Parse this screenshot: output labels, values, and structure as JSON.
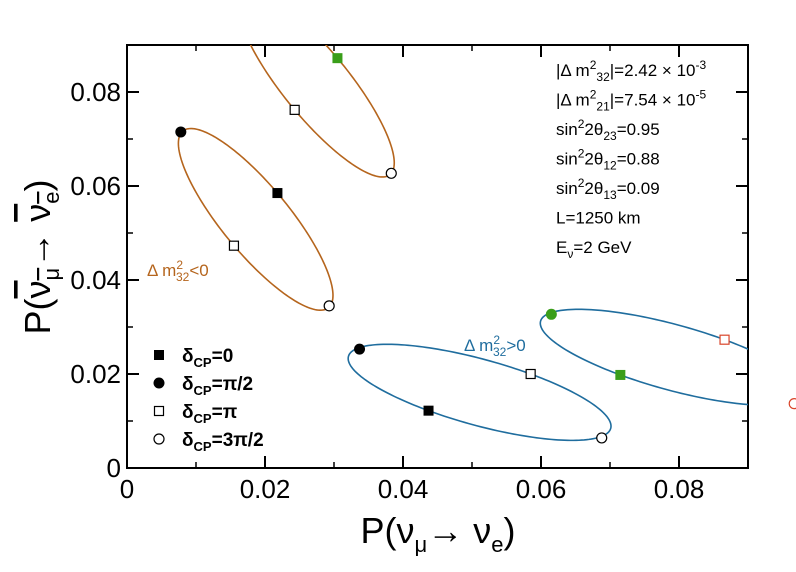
{
  "chart_data": {
    "type": "scatter",
    "xlabel": {
      "pre": "P(",
      "nu1": "ν",
      "sub1": "μ",
      "arrow": "→ ",
      "nu2": "ν",
      "sub2": "e",
      "post": ")"
    },
    "ylabel": {
      "pre": "P(",
      "nu1": "ν",
      "sub1": "μ",
      "arrow": "→ ",
      "nu2": "ν",
      "sub2": "e",
      "post": ")"
    },
    "xlim": [
      0,
      0.09
    ],
    "ylim": [
      0,
      0.09
    ],
    "xticks": [
      0,
      0.02,
      0.04,
      0.06,
      0.08
    ],
    "yticks": [
      0,
      0.02,
      0.04,
      0.06,
      0.08
    ],
    "xtick_labels": [
      "0",
      "0.02",
      "0.04",
      "0.06",
      "0.08"
    ],
    "ytick_labels": [
      "0",
      "0.02",
      "0.04",
      "0.06",
      "0.08"
    ],
    "colors": {
      "inverted": "#b5651d",
      "normal": "#1f6d9e",
      "green": "#3a9e1a",
      "red": "#d9452a"
    },
    "curve_labels": {
      "inverted": {
        "pre": "Δ m",
        "sup": "2",
        "sub": "32",
        "post": "<0"
      },
      "normal": {
        "pre": "Δ m",
        "sup": "2",
        "sub": "32",
        "post": ">0"
      }
    },
    "annotations": [
      {
        "id": "dm32",
        "parts": [
          [
            "",
            "|Δ m"
          ],
          [
            "sup",
            "2"
          ],
          [
            "sub",
            "32"
          ],
          [
            "",
            "|=2.42 × 10"
          ],
          [
            "sup",
            "-3"
          ]
        ]
      },
      {
        "id": "dm21",
        "parts": [
          [
            "",
            "|Δ m"
          ],
          [
            "sup",
            "2"
          ],
          [
            "sub",
            "21"
          ],
          [
            "",
            "|=7.54 × 10"
          ],
          [
            "sup",
            "-5"
          ]
        ]
      },
      {
        "id": "s23",
        "parts": [
          [
            "",
            "sin"
          ],
          [
            "sup",
            "2"
          ],
          [
            "",
            "2θ"
          ],
          [
            "sub",
            "23"
          ],
          [
            "",
            "=0.95"
          ]
        ]
      },
      {
        "id": "s12",
        "parts": [
          [
            "",
            "sin"
          ],
          [
            "sup",
            "2"
          ],
          [
            "",
            "2θ"
          ],
          [
            "sub",
            "12"
          ],
          [
            "",
            "=0.88"
          ]
        ]
      },
      {
        "id": "s13",
        "parts": [
          [
            "",
            "sin"
          ],
          [
            "sup",
            "2"
          ],
          [
            "",
            "2θ"
          ],
          [
            "sub",
            "13"
          ],
          [
            "",
            "=0.09"
          ]
        ]
      },
      {
        "id": "baseline",
        "parts": [
          [
            "",
            "L=1250 km"
          ]
        ]
      },
      {
        "id": "energy",
        "parts": [
          [
            "",
            "E"
          ],
          [
            "sub",
            "ν"
          ],
          [
            "",
            "=2 GeV"
          ]
        ]
      }
    ],
    "legend": [
      {
        "marker": "filled-square",
        "pre": "δ",
        "sub": "CP",
        "post": "=0"
      },
      {
        "marker": "filled-circle",
        "pre": "δ",
        "sub": "CP",
        "post": "=π/2"
      },
      {
        "marker": "open-square",
        "pre": "δ",
        "sub": "CP",
        "post": "=π"
      },
      {
        "marker": "open-circle",
        "pre": "δ",
        "sub": "CP",
        "post": "=3π/2"
      }
    ],
    "ellipses": [
      {
        "name": "inverted-lower",
        "color_key": "inverted",
        "points": [
          {
            "delta": "0",
            "marker": "filled-square",
            "x": 0.0218,
            "y": 0.0585
          },
          {
            "delta": "π/2",
            "marker": "filled-circle",
            "x": 0.0078,
            "y": 0.0715
          },
          {
            "delta": "π",
            "marker": "open-square",
            "x": 0.0155,
            "y": 0.0473
          },
          {
            "delta": "3π/2",
            "marker": "open-circle",
            "x": 0.0293,
            "y": 0.0345
          }
        ]
      },
      {
        "name": "inverted-upper",
        "color_key": "inverted",
        "points": [
          {
            "delta": "0",
            "marker": "filled-square",
            "x": 0.0305,
            "y": 0.0872,
            "fill_key": "green"
          },
          {
            "delta": "π",
            "marker": "open-square",
            "x": 0.0243,
            "y": 0.0762
          },
          {
            "delta": "3π/2",
            "marker": "open-circle",
            "x": 0.0383,
            "y": 0.0627
          }
        ],
        "extra": [
          {
            "x": 0.0298,
            "y": 0.09
          }
        ]
      },
      {
        "name": "normal-left",
        "color_key": "normal",
        "points": [
          {
            "delta": "0",
            "marker": "filled-square",
            "x": 0.0437,
            "y": 0.0122
          },
          {
            "delta": "π/2",
            "marker": "filled-circle",
            "x": 0.0337,
            "y": 0.0253
          },
          {
            "delta": "π",
            "marker": "open-square",
            "x": 0.0585,
            "y": 0.02
          },
          {
            "delta": "3π/2",
            "marker": "open-circle",
            "x": 0.0688,
            "y": 0.0064
          }
        ]
      },
      {
        "name": "normal-right",
        "color_key": "normal",
        "points": [
          {
            "delta": "0",
            "marker": "filled-square",
            "x": 0.0715,
            "y": 0.0198,
            "fill_key": "green"
          },
          {
            "delta": "π/2",
            "marker": "filled-circle",
            "x": 0.0615,
            "y": 0.0327,
            "fill_key": "green"
          },
          {
            "delta": "π",
            "marker": "open-square",
            "x": 0.0866,
            "y": 0.0273,
            "stroke_key": "red"
          },
          {
            "delta": "3π/2",
            "marker": "open-circle",
            "x": 0.0967,
            "y": 0.0137,
            "stroke_key": "red"
          }
        ]
      }
    ]
  }
}
